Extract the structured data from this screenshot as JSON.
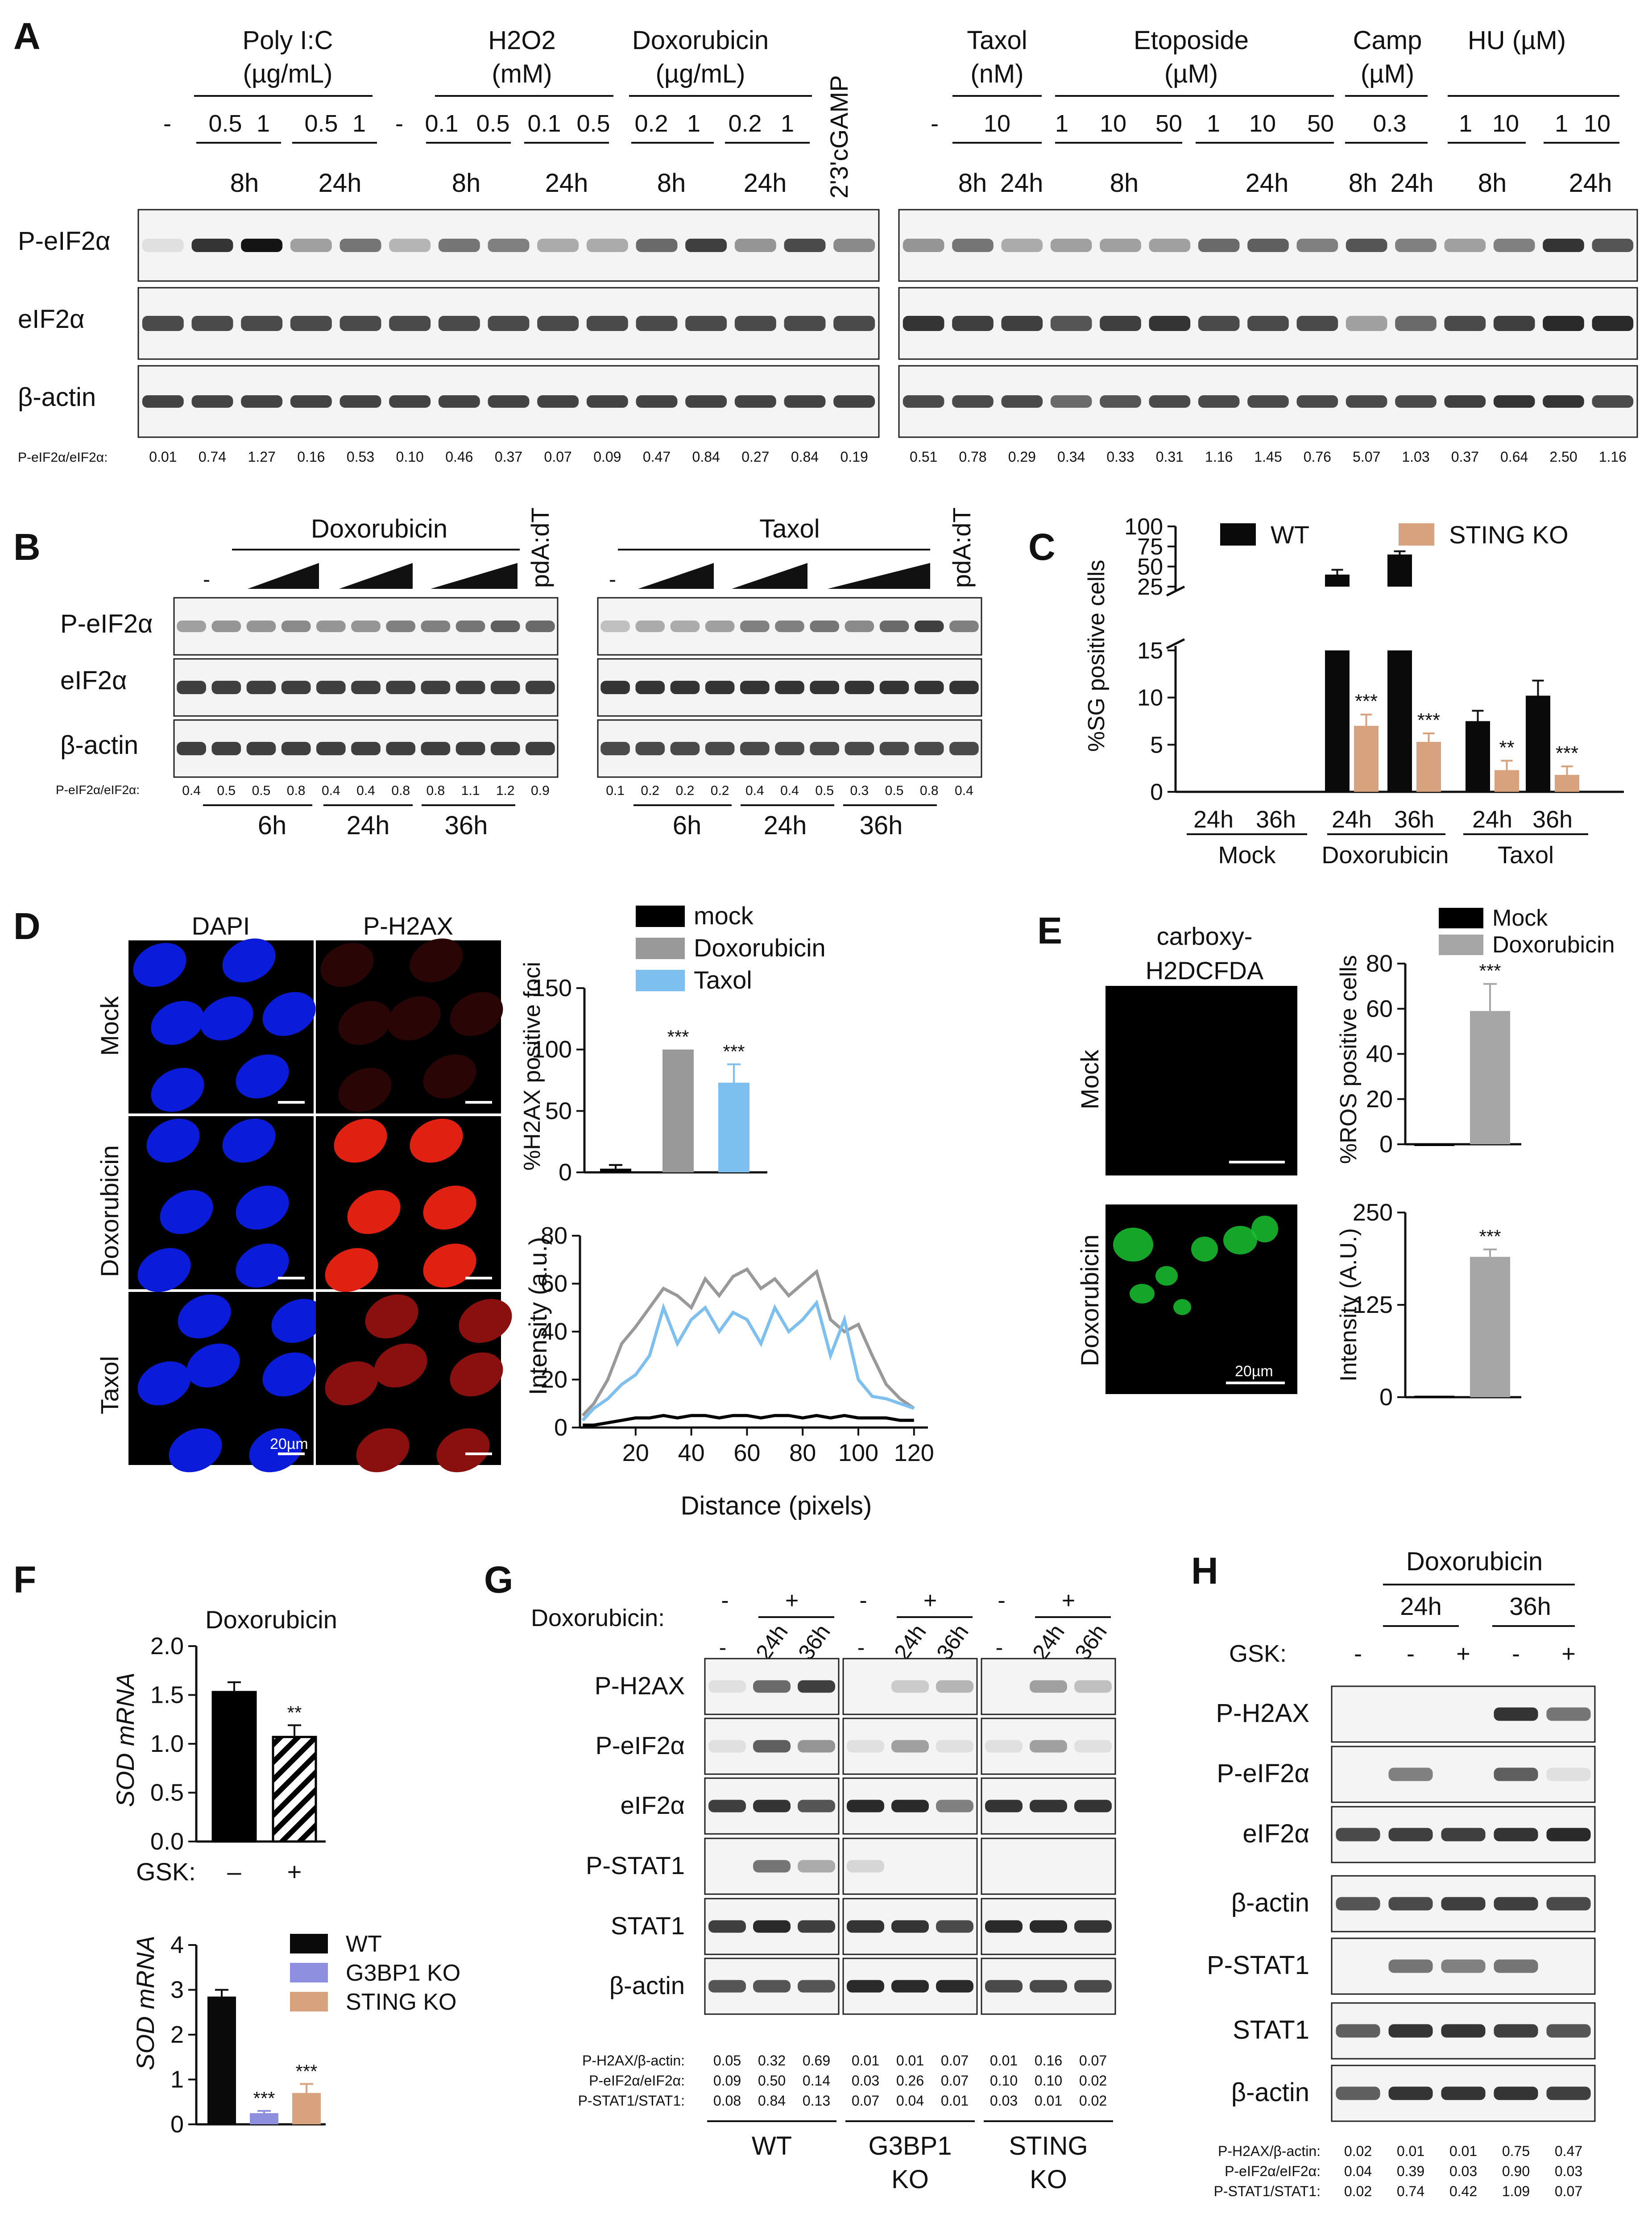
{
  "panel_labels": {
    "A": "A",
    "B": "B",
    "C": "C",
    "D": "D",
    "E": "E",
    "F": "F",
    "G": "G",
    "H": "H"
  },
  "A": {
    "left": {
      "treatments": [
        {
          "name": "Poly I:C",
          "unit": "(µg/mL)"
        },
        {
          "name": "H2O2",
          "unit": "(mM)"
        },
        {
          "name": "Doxorubicin",
          "unit": "(µg/mL)"
        }
      ],
      "cgamp": "2'3'cGAMP",
      "doses": [
        "-",
        "0.5",
        "1",
        "0.5",
        "1",
        "-",
        "0.1",
        "0.5",
        "0.1",
        "0.5",
        "0.2",
        "1",
        "0.2",
        "1"
      ],
      "times": [
        "8h",
        "24h",
        "8h",
        "24h",
        "8h",
        "24h"
      ],
      "ratios": [
        "0.01",
        "0.74",
        "1.27",
        "0.16",
        "0.53",
        "0.10",
        "0.46",
        "0.37",
        "0.07",
        "0.09",
        "0.47",
        "0.84",
        "0.27",
        "0.84",
        "0.19"
      ],
      "band_intensity": [
        0.05,
        0.85,
        1.0,
        0.35,
        0.55,
        0.25,
        0.55,
        0.5,
        0.3,
        0.3,
        0.6,
        0.8,
        0.4,
        0.75,
        0.45
      ]
    },
    "right": {
      "treatments": [
        {
          "name": "Taxol",
          "unit": "(nM)"
        },
        {
          "name": "Etoposide",
          "unit": "(µM)"
        },
        {
          "name": "Camp",
          "unit": "(µM)"
        },
        {
          "name": "HU (µM)",
          "unit": ""
        }
      ],
      "doses": [
        "-",
        "10",
        "1",
        "10",
        "50",
        "1",
        "10",
        "50",
        "0.3",
        "1",
        "10",
        "1",
        "10"
      ],
      "times": [
        "8h",
        "24h",
        "8h",
        "24h",
        "8h",
        "24h",
        "8h",
        "24h"
      ],
      "ratios": [
        "0.51",
        "0.78",
        "0.29",
        "0.34",
        "0.33",
        "0.31",
        "1.16",
        "1.45",
        "0.76",
        "5.07",
        "1.03",
        "0.37",
        "0.64",
        "2.50",
        "1.16"
      ],
      "band_intensity": [
        0.4,
        0.55,
        0.3,
        0.35,
        0.35,
        0.35,
        0.6,
        0.65,
        0.5,
        0.7,
        0.5,
        0.35,
        0.5,
        0.85,
        0.7
      ]
    },
    "rows": [
      "P-eIF2α",
      "eIF2α",
      "β-actin"
    ],
    "ratio_label": "P-eIF2α/eIF2α:"
  },
  "B": {
    "doxo_label": "Doxorubicin",
    "taxol_label": "Taxol",
    "control": "-",
    "pdadt": "pdA:dT",
    "rows": [
      "P-eIF2α",
      "eIF2α",
      "β-actin"
    ],
    "ratio_label": "P-eIF2α/eIF2α:",
    "doxo_ratios": [
      "0.4",
      "0.5",
      "0.5",
      "0.8",
      "0.4",
      "0.4",
      "0.8",
      "0.8",
      "1.1",
      "1.2",
      "0.9"
    ],
    "taxol_ratios": [
      "0.1",
      "0.2",
      "0.2",
      "0.2",
      "0.4",
      "0.4",
      "0.5",
      "0.3",
      "0.5",
      "0.8",
      "0.4"
    ],
    "times": [
      "6h",
      "24h",
      "36h"
    ]
  },
  "C": {
    "ylabel": "%SG positive cells",
    "legend": [
      "WT",
      "STING KO"
    ],
    "colors": {
      "WT": "#0a0a0a",
      "KO": "#d9a27e"
    },
    "groups": [
      "Mock",
      "Doxorubicin",
      "Taxol"
    ],
    "times": [
      "24h",
      "36h",
      "24h",
      "36h",
      "24h",
      "36h"
    ],
    "chart_data": {
      "type": "bar",
      "categories": [
        "Mock 24h",
        "Mock 36h",
        "Doxorubicin 24h",
        "Doxorubicin 36h",
        "Taxol 24h",
        "Taxol 36h"
      ],
      "series": [
        {
          "name": "WT",
          "values": [
            0,
            0,
            40,
            65,
            7.5,
            10.2
          ]
        },
        {
          "name": "STING KO",
          "values": [
            0,
            0,
            7,
            5.3,
            2.3,
            1.8
          ]
        }
      ],
      "errors": {
        "WT": [
          0,
          0,
          6,
          4,
          1.1,
          1.6
        ],
        "STING KO": [
          0,
          0,
          1.2,
          0.9,
          1.0,
          0.9
        ]
      },
      "significance": [
        "",
        "",
        "***",
        "***",
        "**",
        "***"
      ],
      "ylim": [
        0,
        100
      ],
      "yticks": [
        "0",
        "5",
        "10",
        "15",
        "25",
        "50",
        "75",
        "100"
      ]
    }
  },
  "D": {
    "columns": [
      "DAPI",
      "P-H2AX"
    ],
    "rows": [
      "Mock",
      "Doxorubicin",
      "Taxol"
    ],
    "scale": "20µm",
    "legend": [
      "mock",
      "Doxorubicin",
      "Taxol"
    ],
    "colors": {
      "mock": "#000000",
      "Doxorubicin": "#999999",
      "Taxol": "#7dbfee"
    },
    "bar_chart": {
      "type": "bar",
      "ylabel": "%H2AX positive foci",
      "categories": [
        "mock",
        "Doxorubicin",
        "Taxol"
      ],
      "values": [
        3,
        100,
        73
      ],
      "errors": [
        3,
        0,
        15
      ],
      "significance": [
        "",
        "***",
        "***"
      ],
      "ylim": [
        0,
        150
      ],
      "yticks": [
        "0",
        "50",
        "100",
        "150"
      ]
    },
    "line_chart": {
      "type": "line",
      "ylabel": "Intensity (a.u.)",
      "xlabel": "Distance (pixels)",
      "xticks": [
        "20",
        "40",
        "60",
        "80",
        "100",
        "120"
      ],
      "yticks": [
        "0",
        "20",
        "40",
        "60",
        "80"
      ],
      "x": [
        1,
        5,
        10,
        15,
        20,
        25,
        30,
        35,
        40,
        45,
        50,
        55,
        60,
        65,
        70,
        75,
        80,
        85,
        90,
        95,
        100,
        105,
        110,
        115,
        120
      ],
      "series": [
        {
          "name": "mock",
          "values": [
            1,
            1,
            2,
            3,
            4,
            4,
            5,
            4,
            5,
            5,
            4,
            5,
            5,
            4,
            5,
            5,
            4,
            5,
            4,
            5,
            4,
            4,
            4,
            3,
            3
          ]
        },
        {
          "name": "Doxorubicin",
          "values": [
            5,
            10,
            20,
            35,
            42,
            50,
            58,
            55,
            50,
            62,
            55,
            63,
            66,
            58,
            62,
            55,
            60,
            65,
            45,
            40,
            43,
            30,
            18,
            12,
            8
          ]
        },
        {
          "name": "Taxol",
          "values": [
            3,
            8,
            12,
            18,
            22,
            30,
            50,
            35,
            45,
            50,
            40,
            48,
            45,
            35,
            50,
            40,
            45,
            52,
            30,
            45,
            20,
            13,
            12,
            10,
            8
          ]
        }
      ],
      "ylim": [
        0,
        80
      ],
      "xlim": [
        0,
        125
      ]
    }
  },
  "E": {
    "col_title_1": "carboxy-",
    "col_title_2": "H2DCFDA",
    "rows": [
      "Mock",
      "Doxorubicin"
    ],
    "scale": "20µm",
    "legend": [
      "Mock",
      "Doxorubicin"
    ],
    "colors": {
      "Mock": "#000000",
      "Doxorubicin": "#a6a6a6"
    },
    "ros_chart": {
      "type": "bar",
      "ylabel": "%ROS positive cells",
      "categories": [
        "Mock",
        "Doxorubicin"
      ],
      "values": [
        0,
        59
      ],
      "errors": [
        0,
        12
      ],
      "significance": [
        "",
        "***"
      ],
      "ylim": [
        0,
        80
      ],
      "yticks": [
        "0",
        "20",
        "40",
        "60",
        "80"
      ]
    },
    "int_chart": {
      "type": "bar",
      "ylabel": "Intensity (A.U.)",
      "categories": [
        "Mock",
        "Doxorubicin"
      ],
      "values": [
        2,
        190
      ],
      "errors": [
        1,
        10
      ],
      "significance": [
        "",
        "***"
      ],
      "ylim": [
        0,
        250
      ],
      "yticks": [
        "0",
        "125",
        "250"
      ]
    }
  },
  "F": {
    "title": "Doxorubicin",
    "ylabel": "SOD mRNA",
    "gsk_label": "GSK:",
    "gsk_values": [
      "–",
      "+"
    ],
    "top_chart": {
      "type": "bar",
      "categories": [
        "–",
        "+"
      ],
      "values": [
        1.53,
        1.07
      ],
      "errors": [
        0.1,
        0.12
      ],
      "significance": [
        "",
        "**"
      ],
      "ylim": [
        0,
        2.0
      ],
      "yticks": [
        "0.0",
        "0.5",
        "1.0",
        "1.5",
        "2.0"
      ]
    },
    "legend": [
      "WT",
      "G3BP1 KO",
      "STING KO"
    ],
    "colors": {
      "WT": "#0a0a0a",
      "G3BP1": "#8f8fe0",
      "STING": "#d9a27e"
    },
    "bottom_chart": {
      "type": "bar",
      "categories": [
        "WT",
        "G3BP1 KO",
        "STING KO"
      ],
      "values": [
        2.85,
        0.25,
        0.7
      ],
      "errors": [
        0.15,
        0.05,
        0.2
      ],
      "significance": [
        "",
        "***",
        "***"
      ],
      "ylim": [
        0,
        4
      ],
      "yticks": [
        "0",
        "1",
        "2",
        "3",
        "4"
      ]
    }
  },
  "G": {
    "doxo_label": "Doxorubicin:",
    "groups": [
      "WT",
      "G3BP1",
      "STING"
    ],
    "group_sub": "KO",
    "lane_times": [
      "-",
      "24h",
      "36h"
    ],
    "signs": [
      "-",
      "+"
    ],
    "rows": [
      "P-H2AX",
      "P-eIF2α",
      "eIF2α",
      "P-STAT1",
      "STAT1",
      "β-actin"
    ],
    "ratio_labels": [
      "P-H2AX/β-actin:",
      "P-eIF2α/eIF2α:",
      "P-STAT1/STAT1:"
    ],
    "ratios": [
      [
        "0.05",
        "0.32",
        "0.69",
        "0.01",
        "0.01",
        "0.07",
        "0.01",
        "0.16",
        "0.07"
      ],
      [
        "0.09",
        "0.50",
        "0.14",
        "0.03",
        "0.26",
        "0.07",
        "0.10",
        "0.10",
        "0.02"
      ],
      [
        "0.08",
        "0.84",
        "0.13",
        "0.07",
        "0.04",
        "0.01",
        "0.03",
        "0.01",
        "0.02"
      ]
    ]
  },
  "H": {
    "doxo_label": "Doxorubicin",
    "times": [
      "24h",
      "36h"
    ],
    "gsk_label": "GSK:",
    "gsk": [
      "-",
      "-",
      "+",
      "-",
      "+"
    ],
    "rows": [
      "P-H2AX",
      "P-eIF2α",
      "eIF2α",
      "β-actin",
      "P-STAT1",
      "STAT1",
      "β-actin"
    ],
    "ratio_labels": [
      "P-H2AX/β-actin:",
      "P-eIF2α/eIF2α:",
      "P-STAT1/STAT1:"
    ],
    "ratios": [
      [
        "0.02",
        "0.01",
        "0.01",
        "0.75",
        "0.47"
      ],
      [
        "0.04",
        "0.39",
        "0.03",
        "0.90",
        "0.03"
      ],
      [
        "0.02",
        "0.74",
        "0.42",
        "1.09",
        "0.07"
      ]
    ]
  }
}
